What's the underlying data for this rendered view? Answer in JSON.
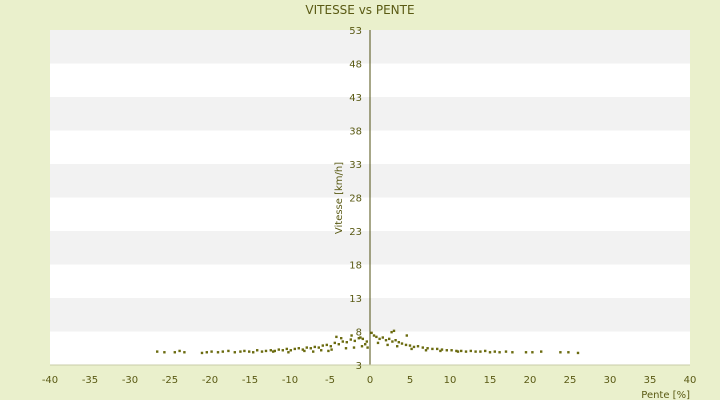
{
  "chart_data": {
    "type": "scatter",
    "title": "VITESSE vs PENTE",
    "xlabel": "Pente [%]",
    "ylabel": "Vitesse [km/h]",
    "xlim": [
      -40,
      40
    ],
    "ylim": [
      3,
      53
    ],
    "x_ticks": [
      -40,
      -35,
      -30,
      -25,
      -20,
      -15,
      -10,
      -5,
      0,
      5,
      10,
      15,
      20,
      25,
      30,
      35,
      40
    ],
    "y_ticks": [
      3,
      8,
      13,
      18,
      23,
      28,
      33,
      38,
      43,
      48,
      53
    ],
    "grid": "alternating horizontal bands",
    "legend": "none",
    "colors": {
      "background": "#eaf0cc",
      "plot_band_light": "#ffffff",
      "plot_band_dark": "#f2f2f2",
      "marker": "#6b6b10",
      "text": "#5a5a14",
      "axis": "#4f4f10"
    },
    "series": [
      {
        "values": [
          [
            -26.6,
            5.0
          ],
          [
            -25.7,
            4.9
          ],
          [
            -24.4,
            4.9
          ],
          [
            -23.8,
            5.1
          ],
          [
            -23.2,
            4.9
          ],
          [
            -21.0,
            4.8
          ],
          [
            -20.4,
            4.9
          ],
          [
            -19.8,
            5.0
          ],
          [
            -19.0,
            4.9
          ],
          [
            -18.4,
            5.0
          ],
          [
            -17.7,
            5.1
          ],
          [
            -16.9,
            4.9
          ],
          [
            -16.2,
            5.0
          ],
          [
            -15.7,
            5.1
          ],
          [
            -15.1,
            5.0
          ],
          [
            -14.6,
            4.9
          ],
          [
            -14.1,
            5.2
          ],
          [
            -13.5,
            5.0
          ],
          [
            -13.0,
            5.1
          ],
          [
            -12.4,
            5.2
          ],
          [
            -11.9,
            5.1
          ],
          [
            -11.4,
            5.3
          ],
          [
            -10.9,
            5.2
          ],
          [
            -10.4,
            5.4
          ],
          [
            -9.9,
            5.2
          ],
          [
            -9.4,
            5.4
          ],
          [
            -8.9,
            5.5
          ],
          [
            -8.4,
            5.3
          ],
          [
            -7.9,
            5.6
          ],
          [
            -7.4,
            5.5
          ],
          [
            -6.9,
            5.7
          ],
          [
            -6.4,
            5.6
          ],
          [
            -5.9,
            5.9
          ],
          [
            -5.4,
            6.0
          ],
          [
            -4.9,
            5.8
          ],
          [
            -4.4,
            6.3
          ],
          [
            -3.9,
            6.1
          ],
          [
            -3.4,
            6.5
          ],
          [
            -2.9,
            6.4
          ],
          [
            -2.4,
            6.8
          ],
          [
            -1.9,
            6.6
          ],
          [
            -1.4,
            7.0
          ],
          [
            -0.9,
            6.9
          ],
          [
            -0.4,
            6.5
          ],
          [
            -4.2,
            7.2
          ],
          [
            -2.3,
            7.4
          ],
          [
            -1.2,
            7.1
          ],
          [
            -3.6,
            7.0
          ],
          [
            -0.3,
            5.6
          ],
          [
            -0.6,
            6.1
          ],
          [
            -12.1,
            5.0
          ],
          [
            -8.2,
            5.1
          ],
          [
            -6.1,
            5.2
          ],
          [
            -4.8,
            5.3
          ],
          [
            -3.0,
            5.5
          ],
          [
            -2.0,
            5.6
          ],
          [
            -1.0,
            5.8
          ],
          [
            -10.2,
            4.9
          ],
          [
            -7.1,
            5.0
          ],
          [
            -5.2,
            5.1
          ],
          [
            0.2,
            7.8
          ],
          [
            0.5,
            7.4
          ],
          [
            0.8,
            7.2
          ],
          [
            1.2,
            6.9
          ],
          [
            1.6,
            7.1
          ],
          [
            2.0,
            6.7
          ],
          [
            2.4,
            6.9
          ],
          [
            2.8,
            6.5
          ],
          [
            3.2,
            6.7
          ],
          [
            3.6,
            6.4
          ],
          [
            4.0,
            6.2
          ],
          [
            4.5,
            6.0
          ],
          [
            5.0,
            5.9
          ],
          [
            5.5,
            5.7
          ],
          [
            6.0,
            5.8
          ],
          [
            6.6,
            5.6
          ],
          [
            7.2,
            5.5
          ],
          [
            7.8,
            5.4
          ],
          [
            8.4,
            5.4
          ],
          [
            9.0,
            5.3
          ],
          [
            9.6,
            5.2
          ],
          [
            10.2,
            5.2
          ],
          [
            10.8,
            5.1
          ],
          [
            11.4,
            5.1
          ],
          [
            12.0,
            5.0
          ],
          [
            12.6,
            5.1
          ],
          [
            13.2,
            5.0
          ],
          [
            13.8,
            5.0
          ],
          [
            14.4,
            5.1
          ],
          [
            15.0,
            4.9
          ],
          [
            15.6,
            5.0
          ],
          [
            16.2,
            4.9
          ],
          [
            17.0,
            5.0
          ],
          [
            17.8,
            4.9
          ],
          [
            19.5,
            4.9
          ],
          [
            20.3,
            4.9
          ],
          [
            21.4,
            5.0
          ],
          [
            23.8,
            4.9
          ],
          [
            24.8,
            4.9
          ],
          [
            26.0,
            4.8
          ],
          [
            3.0,
            8.1
          ],
          [
            2.7,
            7.9
          ],
          [
            4.6,
            7.4
          ],
          [
            1.0,
            6.3
          ],
          [
            2.2,
            6.0
          ],
          [
            3.4,
            5.8
          ],
          [
            5.2,
            5.4
          ],
          [
            7.0,
            5.2
          ],
          [
            8.8,
            5.1
          ],
          [
            11.0,
            5.0
          ]
        ]
      }
    ]
  }
}
